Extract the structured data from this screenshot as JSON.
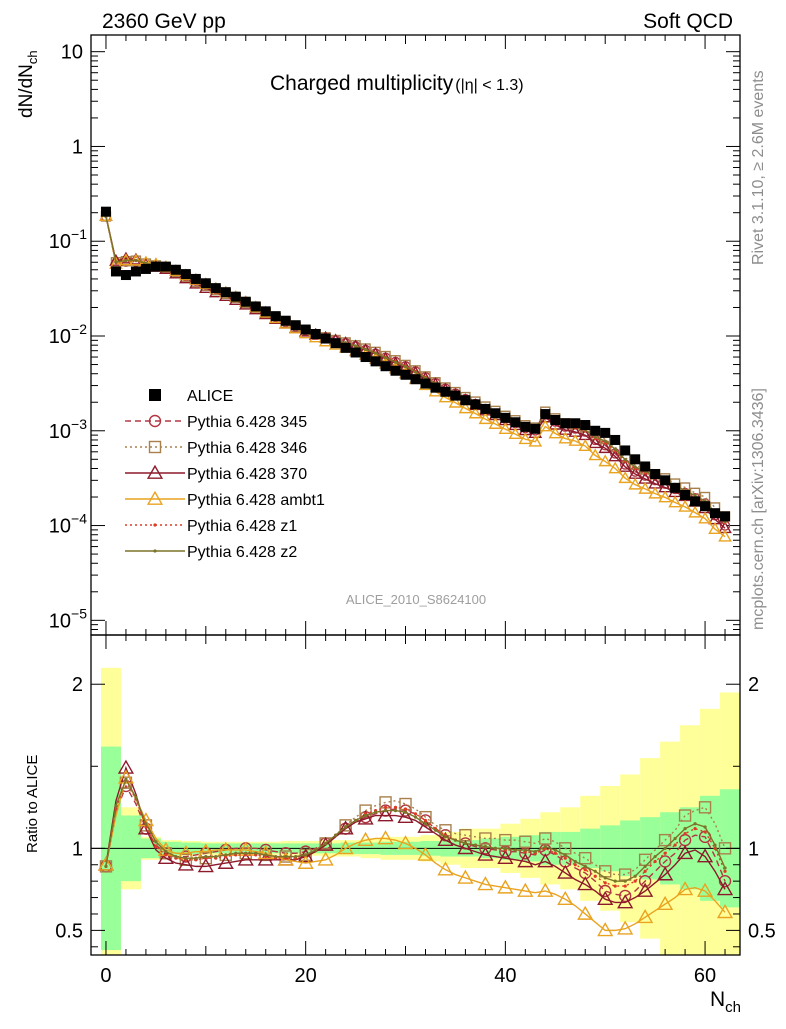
{
  "header": {
    "left": "2360 GeV pp",
    "right": "Soft QCD"
  },
  "side_labels": {
    "rivet": "Rivet 3.1.10, ≥ 2.6M events",
    "mcplots": "mcplots.cern.ch [arXiv:1306.3436]"
  },
  "chart_data": [
    {
      "type": "scatter",
      "panel": "main",
      "title_main": "Charged multiplicity",
      "title_sub": "(|η| < 1.3)",
      "ylabel_main": "dN/dN",
      "ylabel_sub": "ch",
      "watermark": "ALICE_2010_S8624100",
      "yscale": "log",
      "xlim": [
        -1.5,
        63.5
      ],
      "ylim": [
        7e-06,
        15
      ],
      "yticks": [
        {
          "v": 10,
          "base": "10",
          "exp": ""
        },
        {
          "v": 1,
          "base": "1",
          "exp": ""
        },
        {
          "v": 0.1,
          "base": "10",
          "exp": "−1"
        },
        {
          "v": 0.01,
          "base": "10",
          "exp": "−2"
        },
        {
          "v": 0.001,
          "base": "10",
          "exp": "−3"
        },
        {
          "v": 0.0001,
          "base": "10",
          "exp": "−4"
        },
        {
          "v": 1e-05,
          "base": "10",
          "exp": "−5"
        }
      ],
      "legend_position": "middle-left",
      "data": {
        "name": "ALICE",
        "x": [
          0,
          1,
          2,
          3,
          4,
          5,
          6,
          7,
          8,
          9,
          10,
          11,
          12,
          13,
          14,
          15,
          16,
          17,
          18,
          19,
          20,
          21,
          22,
          23,
          24,
          25,
          26,
          27,
          28,
          29,
          30,
          31,
          32,
          33,
          34,
          35,
          36,
          37,
          38,
          39,
          40,
          41,
          42,
          43,
          44,
          45,
          46,
          47,
          48,
          49,
          50,
          51,
          52,
          53,
          54,
          55,
          56,
          57,
          58,
          59,
          60,
          61,
          62
        ],
        "y": [
          0.205,
          0.048,
          0.044,
          0.048,
          0.051,
          0.054,
          0.054,
          0.05,
          0.045,
          0.04,
          0.036,
          0.032,
          0.029,
          0.026,
          0.023,
          0.0205,
          0.0182,
          0.0162,
          0.0145,
          0.013,
          0.0117,
          0.0105,
          0.0094,
          0.0084,
          0.0075,
          0.0067,
          0.006,
          0.0054,
          0.0048,
          0.0043,
          0.0039,
          0.0035,
          0.00315,
          0.00285,
          0.00258,
          0.00235,
          0.0021,
          0.0019,
          0.0017,
          0.00153,
          0.00137,
          0.00123,
          0.0011,
          0.00105,
          0.0015,
          0.0013,
          0.0012,
          0.0012,
          0.00115,
          0.001,
          0.00095,
          0.0008,
          0.00062,
          0.0005,
          0.00042,
          0.00035,
          0.0003,
          0.00025,
          0.00021,
          0.00018,
          0.00016,
          0.000135,
          0.000125
        ]
      },
      "series": [
        {
          "name": "Pythia 6.428 345",
          "color": "#b13642",
          "marker": "circle-open",
          "line": "dashed"
        },
        {
          "name": "Pythia 6.428 346",
          "color": "#a8804c",
          "marker": "square-open",
          "line": "dotted"
        },
        {
          "name": "Pythia 6.428 370",
          "color": "#8d1a2b",
          "marker": "triangle-open",
          "line": "solid"
        },
        {
          "name": "Pythia 6.428 ambt1",
          "color": "#e9a321",
          "marker": "triangle-open",
          "line": "solid"
        },
        {
          "name": "Pythia 6.428 z1",
          "color": "#de3a26",
          "marker": "dot",
          "line": "dotted"
        },
        {
          "name": "Pythia 6.428 z2",
          "color": "#7b7429",
          "marker": "dot",
          "line": "solid"
        }
      ]
    },
    {
      "type": "scatter",
      "panel": "ratio",
      "ylabel": "Ratio to ALICE",
      "xlabel_main": "N",
      "xlabel_sub": "ch",
      "xlim": [
        -1.5,
        63.5
      ],
      "ylim": [
        0.35,
        2.3
      ],
      "yticks": [
        0.5,
        1,
        2
      ],
      "xticks": [
        0,
        20,
        40,
        60
      ],
      "bands": {
        "x_start": -0.5,
        "x_step": 2,
        "green_half": [
          0.62,
          0.2,
          0.06,
          0.04,
          0.035,
          0.03,
          0.03,
          0.03,
          0.03,
          0.03,
          0.03,
          0.03,
          0.035,
          0.035,
          0.04,
          0.04,
          0.045,
          0.05,
          0.05,
          0.06,
          0.07,
          0.08,
          0.1,
          0.1,
          0.12,
          0.14,
          0.17,
          0.19,
          0.22,
          0.25,
          0.32,
          0.36
        ],
        "yellow_half": [
          1.1,
          0.25,
          0.07,
          0.05,
          0.045,
          0.04,
          0.04,
          0.04,
          0.04,
          0.045,
          0.045,
          0.05,
          0.05,
          0.06,
          0.07,
          0.07,
          0.08,
          0.1,
          0.12,
          0.12,
          0.15,
          0.18,
          0.22,
          0.25,
          0.32,
          0.38,
          0.45,
          0.55,
          0.65,
          0.75,
          0.85,
          0.95
        ]
      },
      "x": [
        0,
        1,
        2,
        3,
        4,
        5,
        6,
        7,
        8,
        9,
        10,
        11,
        12,
        13,
        14,
        15,
        16,
        17,
        18,
        19,
        20,
        21,
        22,
        23,
        24,
        25,
        26,
        27,
        28,
        29,
        30,
        31,
        32,
        33,
        34,
        35,
        36,
        37,
        38,
        39,
        40,
        41,
        42,
        43,
        44,
        45,
        46,
        47,
        48,
        49,
        50,
        51,
        52,
        53,
        54,
        55,
        56,
        57,
        58,
        59,
        60,
        61,
        62
      ],
      "series": [
        {
          "name": "Pythia 6.428 345",
          "values": [
            0.89,
            1.22,
            1.38,
            1.27,
            1.12,
            1.02,
            0.97,
            0.95,
            0.95,
            0.96,
            0.97,
            0.98,
            0.99,
            1.0,
            1.0,
            1.0,
            0.99,
            0.98,
            0.97,
            0.97,
            0.98,
            1.0,
            1.03,
            1.07,
            1.12,
            1.16,
            1.19,
            1.21,
            1.23,
            1.24,
            1.23,
            1.21,
            1.17,
            1.12,
            1.08,
            1.05,
            1.03,
            1.01,
            1.0,
            0.99,
            0.98,
            0.98,
            0.97,
            0.96,
            0.99,
            0.96,
            0.92,
            0.88,
            0.85,
            0.8,
            0.74,
            0.72,
            0.71,
            0.74,
            0.8,
            0.86,
            0.92,
            0.97,
            1.05,
            1.08,
            1.07,
            0.95,
            0.8
          ]
        },
        {
          "name": "Pythia 6.428 346",
          "values": [
            0.89,
            1.25,
            1.4,
            1.3,
            1.14,
            1.03,
            0.97,
            0.94,
            0.93,
            0.93,
            0.94,
            0.95,
            0.96,
            0.97,
            0.97,
            0.97,
            0.96,
            0.95,
            0.95,
            0.95,
            0.96,
            0.99,
            1.03,
            1.08,
            1.14,
            1.19,
            1.23,
            1.26,
            1.28,
            1.29,
            1.27,
            1.24,
            1.19,
            1.14,
            1.11,
            1.09,
            1.08,
            1.07,
            1.06,
            1.06,
            1.05,
            1.05,
            1.04,
            1.03,
            1.06,
            1.04,
            1.0,
            0.97,
            0.94,
            0.9,
            0.86,
            0.84,
            0.84,
            0.87,
            0.93,
            0.99,
            1.05,
            1.11,
            1.2,
            1.23,
            1.25,
            1.15,
            1.0
          ]
        },
        {
          "name": "Pythia 6.428 370",
          "values": [
            0.9,
            1.29,
            1.49,
            1.33,
            1.12,
            0.99,
            0.94,
            0.91,
            0.9,
            0.89,
            0.89,
            0.9,
            0.91,
            0.92,
            0.93,
            0.93,
            0.93,
            0.93,
            0.93,
            0.93,
            0.95,
            0.98,
            1.02,
            1.07,
            1.12,
            1.16,
            1.18,
            1.2,
            1.2,
            1.2,
            1.19,
            1.17,
            1.13,
            1.09,
            1.05,
            1.02,
            1.0,
            0.98,
            0.96,
            0.95,
            0.94,
            0.93,
            0.92,
            0.9,
            0.92,
            0.89,
            0.85,
            0.81,
            0.78,
            0.74,
            0.69,
            0.67,
            0.67,
            0.7,
            0.74,
            0.79,
            0.84,
            0.9,
            0.97,
            0.99,
            0.95,
            0.86,
            0.75
          ]
        },
        {
          "name": "Pythia 6.428 ambt1",
          "values": [
            0.9,
            1.2,
            1.43,
            1.3,
            1.17,
            1.06,
            0.99,
            0.97,
            0.97,
            0.98,
            0.98,
            0.99,
            0.99,
            0.99,
            0.99,
            0.98,
            0.97,
            0.95,
            0.93,
            0.92,
            0.91,
            0.92,
            0.93,
            0.96,
            1.0,
            1.03,
            1.05,
            1.06,
            1.06,
            1.05,
            1.03,
            1.0,
            0.96,
            0.91,
            0.87,
            0.84,
            0.82,
            0.8,
            0.78,
            0.77,
            0.76,
            0.75,
            0.74,
            0.73,
            0.74,
            0.72,
            0.69,
            0.65,
            0.6,
            0.55,
            0.5,
            0.5,
            0.51,
            0.54,
            0.58,
            0.62,
            0.66,
            0.7,
            0.75,
            0.76,
            0.74,
            0.68,
            0.61
          ]
        },
        {
          "name": "Pythia 6.428 z1",
          "values": [
            0.89,
            1.24,
            1.42,
            1.3,
            1.13,
            1.01,
            0.96,
            0.94,
            0.93,
            0.93,
            0.94,
            0.94,
            0.95,
            0.96,
            0.96,
            0.96,
            0.95,
            0.94,
            0.94,
            0.94,
            0.96,
            0.99,
            1.03,
            1.08,
            1.13,
            1.17,
            1.21,
            1.23,
            1.25,
            1.25,
            1.24,
            1.21,
            1.17,
            1.12,
            1.08,
            1.05,
            1.03,
            1.02,
            1.01,
            1.0,
            0.99,
            0.99,
            0.98,
            0.97,
            1.0,
            0.97,
            0.94,
            0.9,
            0.87,
            0.83,
            0.79,
            0.77,
            0.77,
            0.8,
            0.86,
            0.92,
            0.97,
            1.02,
            1.09,
            1.12,
            1.1,
            1.0,
            0.86
          ]
        },
        {
          "name": "Pythia 6.428 z2",
          "values": [
            0.89,
            1.26,
            1.42,
            1.31,
            1.15,
            1.04,
            0.98,
            0.95,
            0.94,
            0.94,
            0.95,
            0.95,
            0.96,
            0.97,
            0.97,
            0.97,
            0.96,
            0.95,
            0.95,
            0.95,
            0.96,
            0.99,
            1.03,
            1.08,
            1.13,
            1.17,
            1.2,
            1.22,
            1.23,
            1.23,
            1.22,
            1.19,
            1.15,
            1.11,
            1.07,
            1.05,
            1.03,
            1.02,
            1.01,
            1.0,
            1.0,
            0.99,
            0.99,
            0.98,
            1.01,
            0.99,
            0.96,
            0.92,
            0.89,
            0.86,
            0.82,
            0.8,
            0.8,
            0.83,
            0.89,
            0.95,
            1.0,
            1.06,
            1.12,
            1.15,
            1.13,
            1.02,
            0.88
          ]
        }
      ]
    }
  ]
}
